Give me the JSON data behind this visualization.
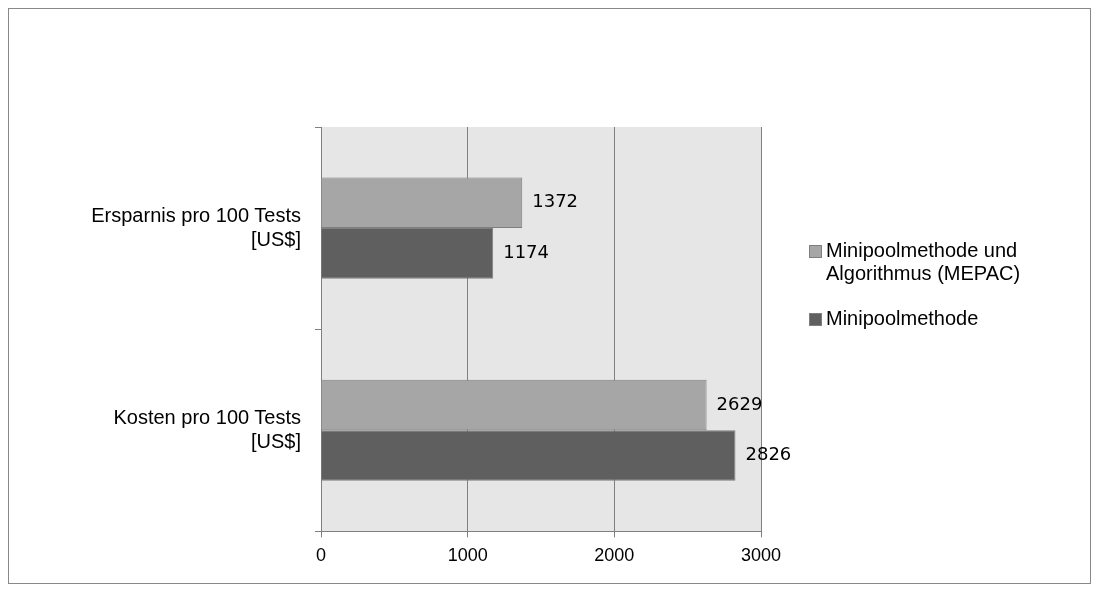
{
  "chart_data": {
    "type": "bar",
    "orientation": "horizontal",
    "categories": [
      "Ersparnis pro 100 Tests [US$]",
      "Kosten pro 100 Tests [US$]"
    ],
    "series": [
      {
        "name": "Minipoolmethode und Algorithmus (MEPAC)",
        "color": "#a6a6a6",
        "values": [
          1372,
          2629
        ]
      },
      {
        "name": "Minipoolmethode",
        "color": "#5f5f5f",
        "values": [
          1174,
          2826
        ]
      }
    ],
    "xlim": [
      0,
      3000
    ],
    "xticks": [
      0,
      1000,
      2000,
      3000
    ],
    "grid": "x",
    "legend": "right",
    "data_labels": true
  }
}
